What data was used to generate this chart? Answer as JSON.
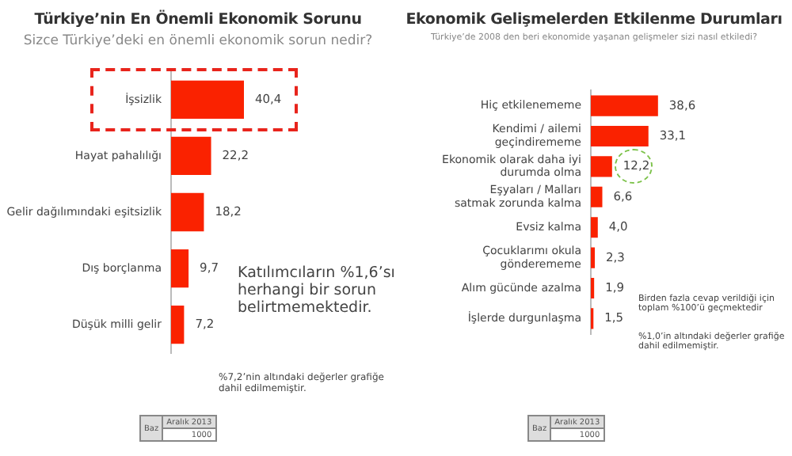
{
  "chart_data": [
    {
      "type": "bar",
      "orientation": "horizontal",
      "title": "Türkiye’nin En Önemli Ekonomik Sorunu",
      "subtitle": "Sizce Türkiye’deki en önemli ekonomik sorun nedir?",
      "categories": [
        "İşsizlik",
        "Hayat pahalılığı",
        "Gelir dağılımındaki eşitsizlik",
        "Dış borçlanma",
        "Düşük milli gelir"
      ],
      "values": [
        40.4,
        22.2,
        18.2,
        9.7,
        7.2
      ],
      "color": "#fa2200",
      "value_labels": [
        "40,4",
        "22,2",
        "18,2",
        "9,7",
        "7,2"
      ],
      "annotations": [
        "Katılımcıların %1,6’sı herhangi bir sorun belirtmemektedir.",
        "%7,2’nin altındaki değerler grafiğe dahil edilmemiştir.",
        "Baz",
        "Aralık 2013",
        "1000"
      ],
      "grid": false,
      "legend": false
    },
    {
      "type": "bar",
      "orientation": "horizontal",
      "title": "Ekonomik Gelişmelerden Etkilenme Durumları",
      "subtitle": "Türkiye’de 2008 den beri ekonomide yaşanan gelişmeler sizi nasıl etkiledi?",
      "categories": [
        "Hiç etkilenememe",
        "Kendimi / ailemi geçindirememe",
        "Ekonomik olarak daha iyi durumda olma",
        "Eşyaları / Malları satmak zorunda kalma",
        "Evsiz kalma",
        "Çocuklarımı okula gönderememe",
        "Alım gücünde azalma",
        "İşlerde durgunlaşma"
      ],
      "values": [
        38.6,
        33.1,
        12.2,
        6.6,
        4.0,
        2.3,
        1.9,
        1.5
      ],
      "color": "#fa2200",
      "value_labels": [
        "38,6",
        "33,1",
        "12,2",
        "6,6",
        "4,0",
        "2,3",
        "1,9",
        "1,5"
      ],
      "annotations": [
        "Birden fazla cevap verildiği için toplam %100’ü geçmektedir",
        "%1,0’in altındaki değerler grafiğe dahil edilmemiştir.",
        "Baz",
        "Aralık 2013",
        "1000"
      ],
      "grid": false,
      "legend": false
    }
  ]
}
